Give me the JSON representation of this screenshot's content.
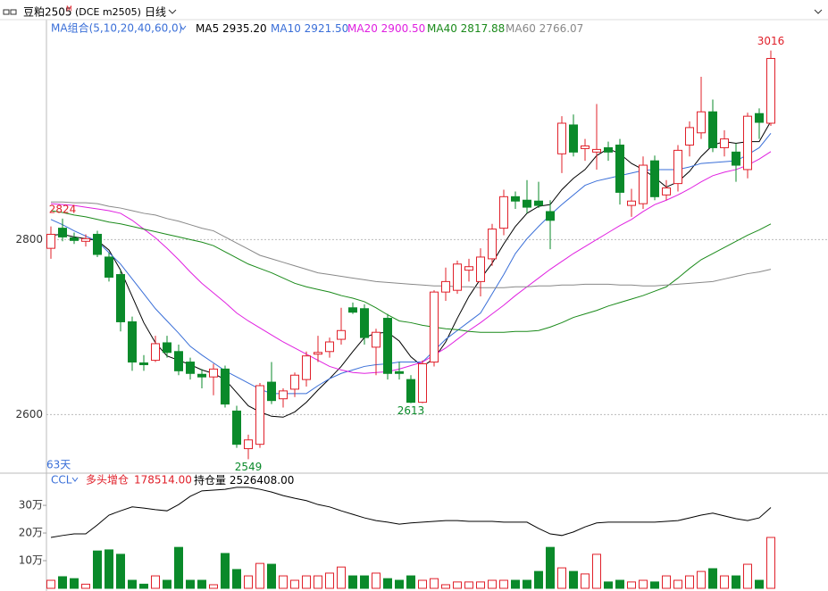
{
  "header": {
    "symbol": "豆粕2505",
    "badge": "M",
    "exchange": "(DCE m2505)",
    "period": "日线"
  },
  "chart_data": [
    {
      "type": "candlestick",
      "ma_group": "MA组合(5,10,20,40,60,0)",
      "period_label": "63天",
      "up_color": "#e0202a",
      "down_color": "#0a8a2a",
      "ylim": [
        2533,
        3033
      ],
      "yticks": [
        2600,
        2800
      ],
      "grid": true,
      "open": [
        2790,
        2813,
        2802,
        2798,
        2806,
        2780,
        2760,
        2706,
        2659,
        2662,
        2682,
        2672,
        2660,
        2646,
        2643,
        2652,
        2604,
        2561,
        2566,
        2637,
        2618,
        2629,
        2640,
        2669,
        2672,
        2686,
        2722,
        2721,
        2677,
        2710,
        2649,
        2640,
        2614,
        2660,
        2740,
        2742,
        2765,
        2752,
        2778,
        2813,
        2849,
        2845,
        2844,
        2832,
        2898,
        2931,
        2904,
        2900,
        2905,
        2908,
        2839,
        2841,
        2890,
        2851,
        2864,
        2908,
        2922,
        2946,
        2905,
        2900,
        2880,
        2944,
        2933
      ],
      "high": [
        2815,
        2824,
        2808,
        2806,
        2810,
        2785,
        2765,
        2712,
        2668,
        2690,
        2690,
        2680,
        2665,
        2652,
        2658,
        2656,
        2610,
        2577,
        2636,
        2660,
        2630,
        2648,
        2672,
        2690,
        2688,
        2722,
        2728,
        2726,
        2698,
        2715,
        2660,
        2645,
        2662,
        2742,
        2768,
        2776,
        2778,
        2790,
        2818,
        2857,
        2855,
        2868,
        2866,
        2845,
        2941,
        2943,
        2915,
        2955,
        2912,
        2915,
        2858,
        2895,
        2896,
        2868,
        2908,
        2935,
        2986,
        2960,
        2925,
        2910,
        2945,
        2950,
        3016
      ],
      "low": [
        2778,
        2798,
        2795,
        2792,
        2780,
        2752,
        2695,
        2650,
        2650,
        2660,
        2665,
        2645,
        2640,
        2630,
        2622,
        2608,
        2562,
        2549,
        2562,
        2612,
        2608,
        2620,
        2632,
        2660,
        2665,
        2680,
        2715,
        2680,
        2645,
        2640,
        2640,
        2613,
        2613,
        2655,
        2730,
        2738,
        2752,
        2735,
        2770,
        2805,
        2835,
        2830,
        2836,
        2789,
        2876,
        2895,
        2890,
        2880,
        2890,
        2840,
        2826,
        2835,
        2845,
        2845,
        2855,
        2895,
        2915,
        2900,
        2895,
        2866,
        2870,
        2915,
        2930
      ],
      "close": [
        2806,
        2803,
        2799,
        2801,
        2783,
        2757,
        2706,
        2660,
        2657,
        2681,
        2671,
        2650,
        2647,
        2643,
        2652,
        2612,
        2566,
        2571,
        2633,
        2616,
        2627,
        2645,
        2667,
        2671,
        2683,
        2696,
        2717,
        2688,
        2694,
        2647,
        2647,
        2614,
        2658,
        2740,
        2752,
        2772,
        2769,
        2780,
        2812,
        2849,
        2844,
        2837,
        2839,
        2822,
        2933,
        2900,
        2907,
        2903,
        2900,
        2854,
        2844,
        2885,
        2849,
        2859,
        2902,
        2928,
        2946,
        2905,
        2915,
        2885,
        2941,
        2934,
        3007
      ],
      "series": [
        {
          "name": "MA5",
          "color": "#000000",
          "legend_value": "2935.20",
          "values": [
            2805,
            2806,
            2803,
            2801,
            2799,
            2788,
            2765,
            2735,
            2705,
            2682,
            2667,
            2662,
            2657,
            2651,
            2647,
            2640,
            2625,
            2610,
            2603,
            2598,
            2597,
            2603,
            2614,
            2628,
            2641,
            2655,
            2672,
            2688,
            2693,
            2694,
            2684,
            2666,
            2655,
            2664,
            2683,
            2710,
            2735,
            2755,
            2773,
            2795,
            2815,
            2830,
            2838,
            2840,
            2857,
            2870,
            2880,
            2896,
            2904,
            2898,
            2887,
            2880,
            2871,
            2860,
            2866,
            2878,
            2895,
            2908,
            2912,
            2910,
            2912,
            2912,
            2935.2
          ]
        },
        {
          "name": "MA10",
          "color": "#3a6fd8",
          "legend_value": "2921.50",
          "values": [
            2823,
            2817,
            2810,
            2804,
            2798,
            2785,
            2772,
            2755,
            2738,
            2721,
            2707,
            2693,
            2678,
            2668,
            2659,
            2650,
            2643,
            2636,
            2629,
            2624,
            2624,
            2624,
            2624,
            2633,
            2641,
            2647,
            2651,
            2655,
            2657,
            2658,
            2660,
            2660,
            2660,
            2673,
            2686,
            2696,
            2706,
            2716,
            2738,
            2760,
            2784,
            2801,
            2815,
            2828,
            2840,
            2851,
            2862,
            2867,
            2870,
            2873,
            2876,
            2879,
            2880,
            2880,
            2880,
            2883,
            2887,
            2888,
            2889,
            2890,
            2897,
            2905,
            2921.5
          ]
        },
        {
          "name": "MA20",
          "color": "#e020e0",
          "legend_value": "2900.50",
          "values": [
            2841,
            2840,
            2839,
            2837,
            2835,
            2833,
            2830,
            2822,
            2812,
            2802,
            2790,
            2777,
            2763,
            2750,
            2739,
            2728,
            2716,
            2707,
            2699,
            2691,
            2683,
            2676,
            2669,
            2662,
            2655,
            2651,
            2648,
            2647,
            2648,
            2649,
            2652,
            2656,
            2660,
            2668,
            2676,
            2686,
            2696,
            2705,
            2715,
            2725,
            2736,
            2746,
            2756,
            2766,
            2775,
            2784,
            2792,
            2800,
            2808,
            2816,
            2823,
            2832,
            2840,
            2845,
            2851,
            2858,
            2866,
            2873,
            2877,
            2880,
            2885,
            2892,
            2900.5
          ]
        },
        {
          "name": "MA40",
          "color": "#1a8a1a",
          "legend_value": "2817.88",
          "values": [
            2833,
            2831,
            2828,
            2826,
            2823,
            2820,
            2818,
            2815,
            2812,
            2809,
            2806,
            2803,
            2800,
            2797,
            2793,
            2786,
            2779,
            2772,
            2767,
            2762,
            2756,
            2750,
            2746,
            2743,
            2740,
            2736,
            2733,
            2729,
            2722,
            2714,
            2707,
            2705,
            2702,
            2700,
            2698,
            2697,
            2695,
            2694,
            2694,
            2694,
            2695,
            2695,
            2696,
            2700,
            2705,
            2711,
            2715,
            2719,
            2724,
            2728,
            2732,
            2736,
            2741,
            2746,
            2756,
            2767,
            2777,
            2784,
            2791,
            2798,
            2805,
            2811,
            2817.88
          ]
        },
        {
          "name": "MA60",
          "color": "#888888",
          "legend_value": "2766.07",
          "values": [
            2843,
            2843,
            2842,
            2842,
            2841,
            2838,
            2836,
            2833,
            2830,
            2828,
            2824,
            2821,
            2817,
            2813,
            2810,
            2803,
            2796,
            2789,
            2782,
            2778,
            2774,
            2770,
            2766,
            2762,
            2760,
            2758,
            2756,
            2754,
            2752,
            2751,
            2750,
            2749,
            2748,
            2747,
            2747,
            2746,
            2746,
            2745,
            2745,
            2745,
            2746,
            2746,
            2747,
            2747,
            2748,
            2748,
            2749,
            2749,
            2749,
            2748,
            2748,
            2747,
            2747,
            2748,
            2749,
            2750,
            2751,
            2752,
            2755,
            2758,
            2761,
            2763,
            2766.07
          ]
        }
      ]
    },
    {
      "type": "volume",
      "indicator": "CCL",
      "note": "多头增仓",
      "note_value": "178514.00",
      "ylim": [
        0,
        36.8
      ],
      "yticks": [
        {
          "value": 10,
          "label": "10万"
        },
        {
          "value": 20,
          "label": "20万"
        },
        {
          "value": 30,
          "label": "30万"
        }
      ],
      "y2lim": [
        2320000,
        2580000
      ],
      "values": [
        2.9,
        4.2,
        3.5,
        1.5,
        13.5,
        13.9,
        12.3,
        2.9,
        1.5,
        4.5,
        2.9,
        14.8,
        2.9,
        2.9,
        1.3,
        12.6,
        6.8,
        4.5,
        9.0,
        8.7,
        4.5,
        2.9,
        4.5,
        4.5,
        5.5,
        7.7,
        4.5,
        4.5,
        5.5,
        3.5,
        2.9,
        4.5,
        2.9,
        3.5,
        1.3,
        2.3,
        2.3,
        2.3,
        2.9,
        2.9,
        2.9,
        2.9,
        6.1,
        14.8,
        7.4,
        6.1,
        5.2,
        12.3,
        2.3,
        2.9,
        2.3,
        2.9,
        2.3,
        4.5,
        2.9,
        4.5,
        6.1,
        7.1,
        4.5,
        4.5,
        8.7,
        2.9,
        18.4
      ],
      "series": [
        {
          "name": "持仓量",
          "color": "#000000",
          "axis": "y2",
          "legend_value": "2526408.00",
          "values": [
            2450000,
            2455000,
            2459000,
            2459000,
            2482000,
            2507000,
            2518000,
            2528000,
            2525000,
            2521000,
            2518000,
            2534000,
            2555000,
            2569000,
            2571000,
            2573000,
            2578000,
            2578000,
            2573000,
            2566000,
            2557000,
            2550000,
            2544000,
            2534000,
            2528000,
            2518000,
            2509000,
            2500000,
            2493000,
            2489000,
            2484000,
            2487000,
            2489000,
            2491000,
            2493000,
            2493000,
            2491000,
            2491000,
            2491000,
            2489000,
            2489000,
            2489000,
            2473000,
            2459000,
            2455000,
            2464000,
            2477000,
            2487000,
            2489000,
            2489000,
            2489000,
            2489000,
            2489000,
            2491000,
            2493000,
            2500000,
            2507000,
            2512000,
            2505000,
            2498000,
            2493000,
            2500000,
            2526408
          ]
        }
      ]
    }
  ]
}
